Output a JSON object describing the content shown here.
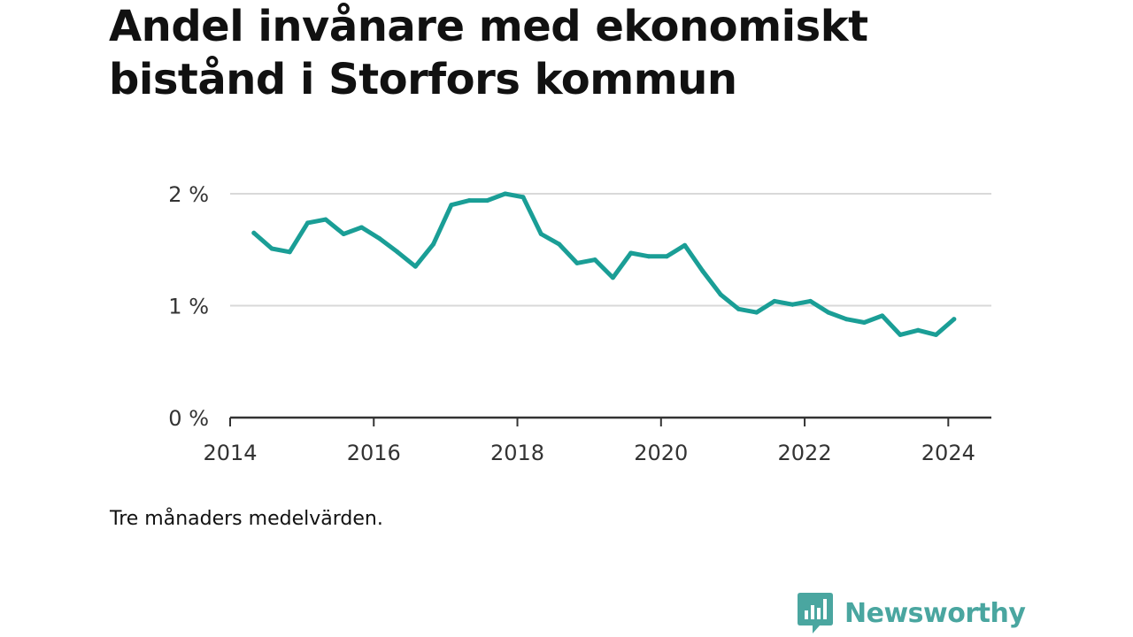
{
  "title": "Andel invånare med ekonomiskt bistånd i Storfors kommun",
  "note": "Tre månaders medelvärden.",
  "brand": {
    "name": "Newsworthy",
    "icon": "newsworthy-bars-icon",
    "color": "#4aa6a0"
  },
  "colors": {
    "line": "#1a9e96",
    "grid": "#d9d9d9",
    "axis": "#333333"
  },
  "chart_data": {
    "type": "line",
    "title": "Andel invånare med ekonomiskt bistånd i Storfors kommun",
    "xlabel": "",
    "ylabel": "",
    "xlim": [
      2014,
      2024.6
    ],
    "ylim": [
      0,
      2
    ],
    "x_ticks": [
      {
        "value": 2014,
        "label": "2014"
      },
      {
        "value": 2016,
        "label": "2016"
      },
      {
        "value": 2018,
        "label": "2018"
      },
      {
        "value": 2020,
        "label": "2020"
      },
      {
        "value": 2022,
        "label": "2022"
      },
      {
        "value": 2024,
        "label": "2024"
      }
    ],
    "y_ticks": [
      {
        "value": 0,
        "label": "0 %"
      },
      {
        "value": 1,
        "label": "1 %"
      },
      {
        "value": 2,
        "label": "2 %"
      }
    ],
    "grid": true,
    "legend": "none",
    "unit": "%",
    "series": [
      {
        "points": [
          [
            2014.33,
            1.65
          ],
          [
            2014.58,
            1.51
          ],
          [
            2014.83,
            1.48
          ],
          [
            2015.08,
            1.74
          ],
          [
            2015.33,
            1.77
          ],
          [
            2015.58,
            1.64
          ],
          [
            2015.83,
            1.7
          ],
          [
            2016.08,
            1.6
          ],
          [
            2016.33,
            1.48
          ],
          [
            2016.58,
            1.35
          ],
          [
            2016.83,
            1.55
          ],
          [
            2017.08,
            1.9
          ],
          [
            2017.33,
            1.94
          ],
          [
            2017.58,
            1.94
          ],
          [
            2017.83,
            2.0
          ],
          [
            2018.08,
            1.97
          ],
          [
            2018.33,
            1.64
          ],
          [
            2018.58,
            1.55
          ],
          [
            2018.83,
            1.38
          ],
          [
            2019.08,
            1.41
          ],
          [
            2019.33,
            1.25
          ],
          [
            2019.58,
            1.47
          ],
          [
            2019.83,
            1.44
          ],
          [
            2020.08,
            1.44
          ],
          [
            2020.33,
            1.54
          ],
          [
            2020.58,
            1.31
          ],
          [
            2020.83,
            1.1
          ],
          [
            2021.08,
            0.97
          ],
          [
            2021.33,
            0.94
          ],
          [
            2021.58,
            1.04
          ],
          [
            2021.83,
            1.01
          ],
          [
            2022.08,
            1.04
          ],
          [
            2022.33,
            0.94
          ],
          [
            2022.58,
            0.88
          ],
          [
            2022.83,
            0.85
          ],
          [
            2023.08,
            0.91
          ],
          [
            2023.33,
            0.74
          ],
          [
            2023.58,
            0.78
          ],
          [
            2023.83,
            0.74
          ],
          [
            2024.08,
            0.88
          ]
        ]
      }
    ]
  }
}
